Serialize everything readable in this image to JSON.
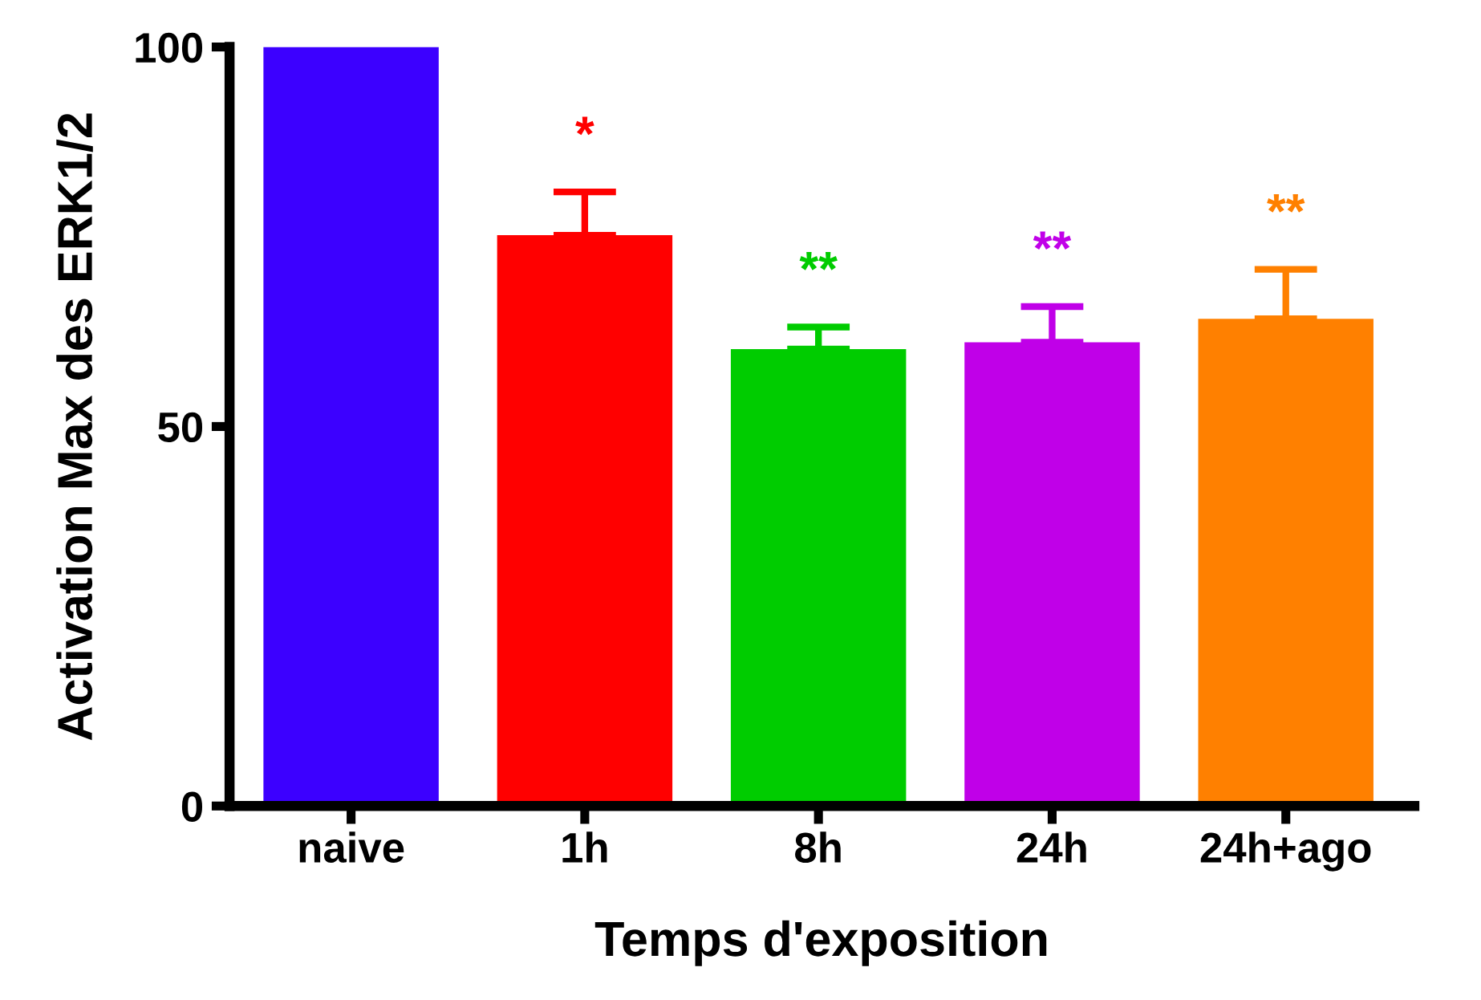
{
  "chart_data": {
    "type": "bar",
    "xlabel": "Temps d'exposition",
    "ylabel": "Activation Max des ERK1/2",
    "categories": [
      "naive",
      "1h",
      "8h",
      "24h",
      "24h+ago"
    ],
    "values": [
      100,
      75.2,
      60.2,
      61.1,
      64.2
    ],
    "colors": [
      "#3c00ff",
      "#ff0000",
      "#00cc00",
      "#c000e8",
      "#ff8000"
    ],
    "errors": [
      null,
      [
        75.2,
        80.9
      ],
      [
        60.2,
        63.1
      ],
      [
        61.1,
        65.8
      ],
      [
        64.2,
        70.7
      ]
    ],
    "ylim": [
      0,
      100
    ],
    "yticks": [
      0,
      50,
      100
    ],
    "grid": false,
    "annotations": [
      "*",
      "**",
      "**",
      "**"
    ]
  }
}
